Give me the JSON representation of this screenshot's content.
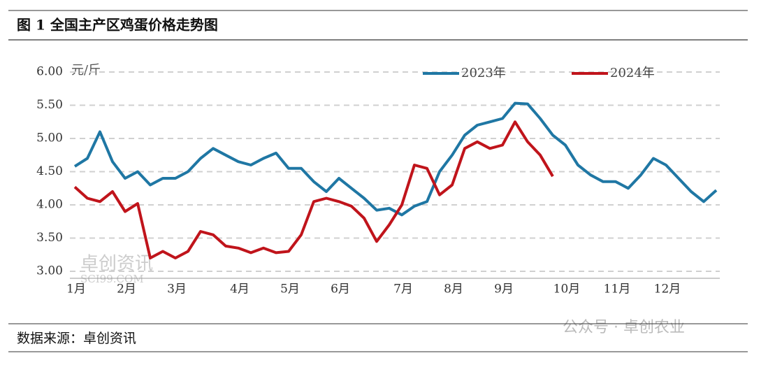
{
  "header": {
    "title": "图 1  全国主产区鸡蛋价格走势图"
  },
  "chart_data": {
    "type": "line",
    "y_label": "元/斤",
    "categories": [
      "1月",
      null,
      null,
      null,
      "2月",
      null,
      null,
      null,
      "3月",
      null,
      null,
      null,
      null,
      "4月",
      null,
      null,
      null,
      "5月",
      null,
      null,
      null,
      "6月",
      null,
      null,
      null,
      null,
      "7月",
      null,
      null,
      null,
      "8月",
      null,
      null,
      null,
      "9月",
      null,
      null,
      null,
      null,
      "10月",
      null,
      null,
      null,
      "11月",
      null,
      null,
      null,
      "12月",
      null,
      null,
      null,
      null
    ],
    "series": [
      {
        "name": "2023年",
        "color": "#1f77a4",
        "values": [
          4.58,
          4.7,
          5.1,
          4.65,
          4.4,
          4.5,
          4.3,
          4.4,
          4.4,
          4.5,
          4.7,
          4.85,
          4.75,
          4.65,
          4.6,
          4.7,
          4.78,
          4.55,
          4.55,
          4.35,
          4.2,
          4.4,
          4.25,
          4.1,
          3.92,
          3.95,
          3.85,
          3.98,
          4.05,
          4.5,
          4.75,
          5.05,
          5.2,
          5.25,
          5.3,
          5.53,
          5.52,
          5.3,
          5.05,
          4.9,
          4.6,
          4.45,
          4.35,
          4.35,
          4.25,
          4.45,
          4.7,
          4.6,
          4.4,
          4.2,
          4.05,
          4.22
        ]
      },
      {
        "name": "2024年",
        "color": "#c0141b",
        "values": [
          4.27,
          4.1,
          4.05,
          4.2,
          3.9,
          4.02,
          3.2,
          3.3,
          3.2,
          3.3,
          3.6,
          3.55,
          3.38,
          3.35,
          3.28,
          3.35,
          3.28,
          3.3,
          3.55,
          4.05,
          4.1,
          4.05,
          3.98,
          3.8,
          3.45,
          3.7,
          4.0,
          4.6,
          4.55,
          4.15,
          4.3,
          4.85,
          4.95,
          4.85,
          4.9,
          5.25,
          4.95,
          4.75,
          4.43,
          null,
          null,
          null,
          null,
          null,
          null,
          null,
          null,
          null,
          null,
          null,
          null,
          null
        ]
      }
    ],
    "ylim": [
      3,
      6
    ],
    "yticks": [
      {
        "value": 3,
        "label": "3.00"
      },
      {
        "value": 3.5,
        "label": "3.50"
      },
      {
        "value": 4,
        "label": "4.00"
      },
      {
        "value": 4.5,
        "label": "4.50"
      },
      {
        "value": 5,
        "label": "5.00"
      },
      {
        "value": 5.5,
        "label": "5.50"
      },
      {
        "value": 6,
        "label": "6.00"
      }
    ],
    "grid": true,
    "legend": "top"
  },
  "watermark": {
    "logo": "卓创资讯",
    "site": "SCI99.COM",
    "account": "公众号 · 卓创农业"
  },
  "footer": {
    "source": "数据来源：卓创资讯"
  }
}
